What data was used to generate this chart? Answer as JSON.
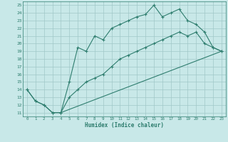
{
  "line1_x": [
    0,
    1,
    2,
    3,
    4,
    5,
    6,
    7,
    8,
    9,
    10,
    11,
    12,
    13,
    14,
    15,
    16,
    17,
    18,
    19,
    20,
    21,
    22,
    23
  ],
  "line1_y": [
    14,
    12.5,
    12,
    11,
    11,
    15,
    19.5,
    19,
    21,
    20.5,
    22,
    22.5,
    23,
    23.5,
    23.8,
    25,
    23.5,
    24,
    24.5,
    23,
    22.5,
    21.5,
    19.5,
    19
  ],
  "line2_x": [
    0,
    1,
    2,
    3,
    4,
    5,
    6,
    7,
    8,
    9,
    10,
    11,
    12,
    13,
    14,
    15,
    16,
    17,
    18,
    19,
    20,
    21,
    22,
    23
  ],
  "line2_y": [
    14,
    12.5,
    12,
    11,
    11,
    13,
    14,
    15,
    15.5,
    16,
    17,
    18,
    18.5,
    19,
    19.5,
    20,
    20.5,
    21,
    21.5,
    21,
    21.5,
    20,
    19.5,
    19
  ],
  "line3_x": [
    4,
    23
  ],
  "line3_y": [
    11,
    19
  ],
  "line_color": "#2e7d6e",
  "bg_color": "#c8e8e8",
  "grid_color": "#a0c8c8",
  "xlabel": "Humidex (Indice chaleur)",
  "xlim": [
    -0.5,
    23.5
  ],
  "ylim": [
    10.5,
    25.5
  ],
  "xticks": [
    0,
    1,
    2,
    3,
    4,
    5,
    6,
    7,
    8,
    9,
    10,
    11,
    12,
    13,
    14,
    15,
    16,
    17,
    18,
    19,
    20,
    21,
    22,
    23
  ],
  "yticks": [
    11,
    12,
    13,
    14,
    15,
    16,
    17,
    18,
    19,
    20,
    21,
    22,
    23,
    24,
    25
  ]
}
